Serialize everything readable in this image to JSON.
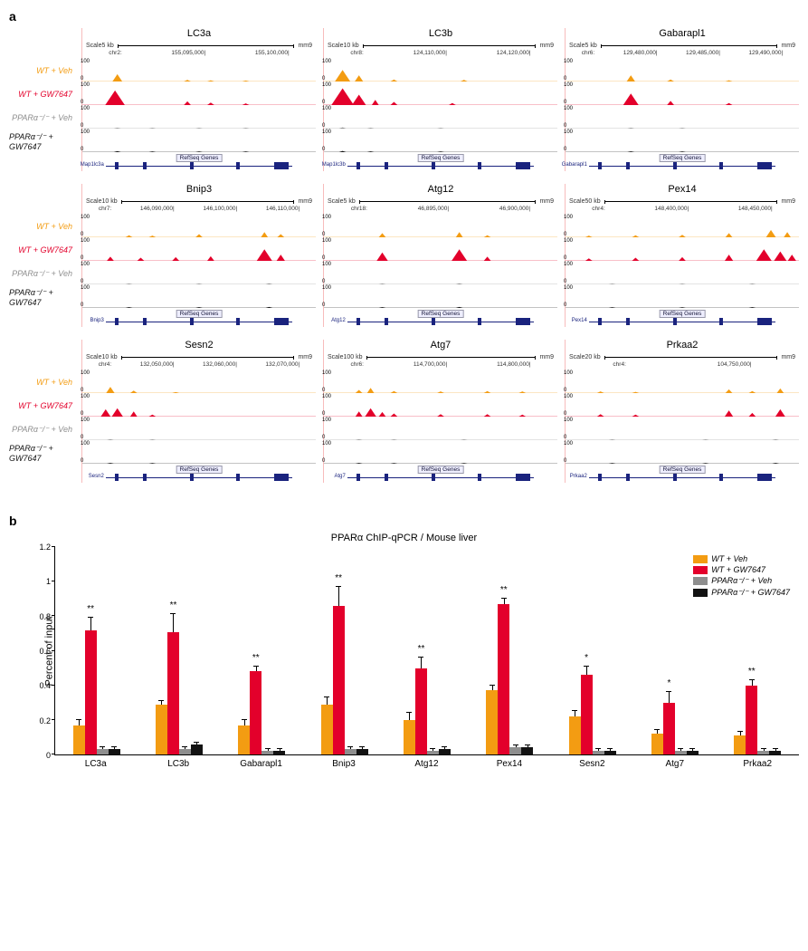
{
  "panel_a": {
    "label": "a",
    "conditions": [
      {
        "id": "wt-veh",
        "label": "WT + Veh",
        "color": "#f39c12"
      },
      {
        "id": "wt-gw",
        "label": "WT + GW7647",
        "color": "#e3002b"
      },
      {
        "id": "ko-veh",
        "label": "PPARα⁻/⁻ + Veh",
        "color": "#8e8e8e"
      },
      {
        "id": "ko-gw",
        "label": "PPARα⁻/⁻ + GW7647",
        "color": "#121212"
      }
    ],
    "y_max": 100,
    "genes_rows": [
      [
        {
          "title": "LC3a",
          "scale": "5 kb",
          "assembly": "mm9",
          "chrom": "chr2:",
          "coords": [
            "155,095,000",
            "155,100,000"
          ],
          "refgene": "Map1lc3a",
          "peaks": {
            "wt-veh": [
              [
                15,
                35
              ],
              [
                45,
                8
              ],
              [
                55,
                6
              ],
              [
                70,
                5
              ]
            ],
            "wt-gw": [
              [
                14,
                70
              ],
              [
                45,
                18
              ],
              [
                55,
                12
              ],
              [
                70,
                8
              ]
            ],
            "ko-veh": [
              [
                15,
                4
              ],
              [
                30,
                3
              ],
              [
                50,
                3
              ],
              [
                70,
                3
              ]
            ],
            "ko-gw": [
              [
                15,
                5
              ],
              [
                30,
                3
              ],
              [
                50,
                3
              ],
              [
                70,
                3
              ]
            ]
          }
        },
        {
          "title": "LC3b",
          "scale": "10 kb",
          "assembly": "mm9",
          "chrom": "chr8:",
          "coords": [
            "124,110,000",
            "124,120,000"
          ],
          "refgene": "Map1lc3b",
          "peaks": {
            "wt-veh": [
              [
                8,
                55
              ],
              [
                15,
                30
              ],
              [
                30,
                10
              ],
              [
                60,
                8
              ]
            ],
            "wt-gw": [
              [
                8,
                80
              ],
              [
                15,
                50
              ],
              [
                22,
                25
              ],
              [
                30,
                15
              ],
              [
                55,
                10
              ]
            ],
            "ko-veh": [
              [
                8,
                6
              ],
              [
                20,
                4
              ],
              [
                50,
                3
              ]
            ],
            "ko-gw": [
              [
                8,
                6
              ],
              [
                20,
                4
              ],
              [
                50,
                3
              ]
            ]
          }
        },
        {
          "title": "Gabarapl1",
          "scale": "5 kb",
          "assembly": "mm9",
          "chrom": "chr6:",
          "coords": [
            "129,480,000",
            "129,485,000",
            "129,490,000"
          ],
          "refgene": "Gabarapl1",
          "peaks": {
            "wt-veh": [
              [
                28,
                30
              ],
              [
                45,
                10
              ],
              [
                70,
                6
              ]
            ],
            "wt-gw": [
              [
                28,
                55
              ],
              [
                45,
                20
              ],
              [
                70,
                10
              ]
            ],
            "ko-veh": [
              [
                28,
                4
              ],
              [
                50,
                3
              ]
            ],
            "ko-gw": [
              [
                28,
                4
              ],
              [
                50,
                3
              ]
            ]
          }
        }
      ],
      [
        {
          "title": "Bnip3",
          "scale": "10 kb",
          "assembly": "mm9",
          "chrom": "chr7:",
          "coords": [
            "146,090,000",
            "146,100,000",
            "146,110,000"
          ],
          "refgene": "Bnip3",
          "peaks": {
            "wt-veh": [
              [
                20,
                10
              ],
              [
                30,
                8
              ],
              [
                50,
                15
              ],
              [
                78,
                25
              ],
              [
                85,
                15
              ]
            ],
            "wt-gw": [
              [
                12,
                20
              ],
              [
                25,
                15
              ],
              [
                40,
                18
              ],
              [
                55,
                22
              ],
              [
                78,
                55
              ],
              [
                85,
                30
              ]
            ],
            "ko-veh": [
              [
                20,
                4
              ],
              [
                50,
                4
              ],
              [
                80,
                5
              ]
            ],
            "ko-gw": [
              [
                20,
                4
              ],
              [
                50,
                4
              ],
              [
                80,
                5
              ]
            ]
          }
        },
        {
          "title": "Atg12",
          "scale": "5 kb",
          "assembly": "mm9",
          "chrom": "chr18:",
          "coords": [
            "46,895,000",
            "46,900,000"
          ],
          "refgene": "Atg12",
          "peaks": {
            "wt-veh": [
              [
                25,
                20
              ],
              [
                58,
                25
              ],
              [
                70,
                10
              ]
            ],
            "wt-gw": [
              [
                25,
                40
              ],
              [
                58,
                55
              ],
              [
                70,
                20
              ]
            ],
            "ko-veh": [
              [
                25,
                4
              ],
              [
                58,
                5
              ]
            ],
            "ko-gw": [
              [
                25,
                4
              ],
              [
                58,
                5
              ]
            ]
          }
        },
        {
          "title": "Pex14",
          "scale": "50 kb",
          "assembly": "mm9",
          "chrom": "chr4:",
          "coords": [
            "148,400,000",
            "148,450,000"
          ],
          "refgene": "Pex14",
          "peaks": {
            "wt-veh": [
              [
                10,
                8
              ],
              [
                30,
                10
              ],
              [
                50,
                12
              ],
              [
                70,
                20
              ],
              [
                88,
                35
              ],
              [
                95,
                25
              ]
            ],
            "wt-gw": [
              [
                10,
                12
              ],
              [
                30,
                15
              ],
              [
                50,
                18
              ],
              [
                70,
                30
              ],
              [
                85,
                55
              ],
              [
                92,
                45
              ],
              [
                97,
                30
              ]
            ],
            "ko-veh": [
              [
                20,
                3
              ],
              [
                50,
                3
              ],
              [
                80,
                4
              ]
            ],
            "ko-gw": [
              [
                20,
                3
              ],
              [
                50,
                3
              ],
              [
                80,
                4
              ]
            ]
          }
        }
      ],
      [
        {
          "title": "Sesn2",
          "scale": "10 kb",
          "assembly": "mm9",
          "chrom": "chr4:",
          "coords": [
            "132,050,000",
            "132,060,000",
            "132,070,000"
          ],
          "refgene": "Sesn2",
          "peaks": {
            "wt-veh": [
              [
                12,
                30
              ],
              [
                22,
                12
              ],
              [
                40,
                5
              ]
            ],
            "wt-gw": [
              [
                10,
                35
              ],
              [
                15,
                40
              ],
              [
                22,
                25
              ],
              [
                30,
                10
              ]
            ],
            "ko-veh": [
              [
                12,
                4
              ],
              [
                30,
                3
              ]
            ],
            "ko-gw": [
              [
                12,
                4
              ],
              [
                30,
                3
              ]
            ]
          }
        },
        {
          "title": "Atg7",
          "scale": "100 kb",
          "assembly": "mm9",
          "chrom": "chr6:",
          "coords": [
            "114,700,000",
            "114,800,000"
          ],
          "refgene": "Atg7",
          "peaks": {
            "wt-veh": [
              [
                15,
                15
              ],
              [
                20,
                25
              ],
              [
                30,
                10
              ],
              [
                50,
                8
              ],
              [
                70,
                10
              ],
              [
                85,
                8
              ]
            ],
            "wt-gw": [
              [
                15,
                25
              ],
              [
                20,
                40
              ],
              [
                25,
                22
              ],
              [
                30,
                15
              ],
              [
                50,
                12
              ],
              [
                70,
                12
              ],
              [
                85,
                10
              ]
            ],
            "ko-veh": [
              [
                15,
                4
              ],
              [
                30,
                3
              ],
              [
                60,
                3
              ]
            ],
            "ko-gw": [
              [
                15,
                4
              ],
              [
                30,
                3
              ],
              [
                60,
                3
              ]
            ]
          }
        },
        {
          "title": "Prkaa2",
          "scale": "20 kb",
          "assembly": "mm9",
          "chrom": "chr4:",
          "coords": [
            "104,750,000"
          ],
          "refgene": "Prkaa2",
          "peaks": {
            "wt-veh": [
              [
                15,
                8
              ],
              [
                30,
                6
              ],
              [
                70,
                18
              ],
              [
                80,
                10
              ],
              [
                92,
                22
              ]
            ],
            "wt-gw": [
              [
                15,
                12
              ],
              [
                30,
                10
              ],
              [
                70,
                30
              ],
              [
                80,
                18
              ],
              [
                92,
                35
              ]
            ],
            "ko-veh": [
              [
                20,
                3
              ],
              [
                60,
                3
              ],
              [
                90,
                4
              ]
            ],
            "ko-gw": [
              [
                20,
                3
              ],
              [
                60,
                3
              ],
              [
                90,
                4
              ]
            ]
          }
        }
      ]
    ]
  },
  "panel_b": {
    "label": "b",
    "title": "PPARα ChIP-qPCR / Mouse liver",
    "y_label": "Percent of input",
    "y_max": 1.2,
    "y_ticks": [
      0,
      0.2,
      0.4,
      0.6,
      0.8,
      1.0,
      1.2
    ],
    "legend": [
      {
        "label": "WT + Veh",
        "color": "#f39c12"
      },
      {
        "label": "WT + GW7647",
        "color": "#e3002b"
      },
      {
        "label": "PPARα⁻/⁻ + Veh",
        "color": "#8e8e8e"
      },
      {
        "label": "PPARα⁻/⁻ + GW7647",
        "color": "#121212"
      }
    ],
    "genes": [
      {
        "name": "LC3a",
        "values": [
          0.17,
          0.72,
          0.03,
          0.03
        ],
        "errors": [
          0.03,
          0.07,
          0.01,
          0.01
        ],
        "sig": "**"
      },
      {
        "name": "LC3b",
        "values": [
          0.29,
          0.71,
          0.03,
          0.06
        ],
        "errors": [
          0.02,
          0.1,
          0.01,
          0.01
        ],
        "sig": "**"
      },
      {
        "name": "Gabarapl1",
        "values": [
          0.17,
          0.48,
          0.02,
          0.02
        ],
        "errors": [
          0.03,
          0.03,
          0.01,
          0.01
        ],
        "sig": "**"
      },
      {
        "name": "Bnip3",
        "values": [
          0.29,
          0.86,
          0.03,
          0.03
        ],
        "errors": [
          0.04,
          0.11,
          0.01,
          0.01
        ],
        "sig": "**"
      },
      {
        "name": "Atg12",
        "values": [
          0.2,
          0.5,
          0.02,
          0.03
        ],
        "errors": [
          0.04,
          0.06,
          0.01,
          0.01
        ],
        "sig": "**"
      },
      {
        "name": "Pex14",
        "values": [
          0.37,
          0.87,
          0.04,
          0.04
        ],
        "errors": [
          0.03,
          0.03,
          0.01,
          0.01
        ],
        "sig": "**"
      },
      {
        "name": "Sesn2",
        "values": [
          0.22,
          0.46,
          0.02,
          0.02
        ],
        "errors": [
          0.03,
          0.05,
          0.01,
          0.01
        ],
        "sig": "*"
      },
      {
        "name": "Atg7",
        "values": [
          0.12,
          0.3,
          0.02,
          0.02
        ],
        "errors": [
          0.02,
          0.06,
          0.01,
          0.01
        ],
        "sig": "*"
      },
      {
        "name": "Prkaa2",
        "values": [
          0.11,
          0.4,
          0.02,
          0.02
        ],
        "errors": [
          0.02,
          0.03,
          0.01,
          0.01
        ],
        "sig": "**"
      }
    ]
  }
}
